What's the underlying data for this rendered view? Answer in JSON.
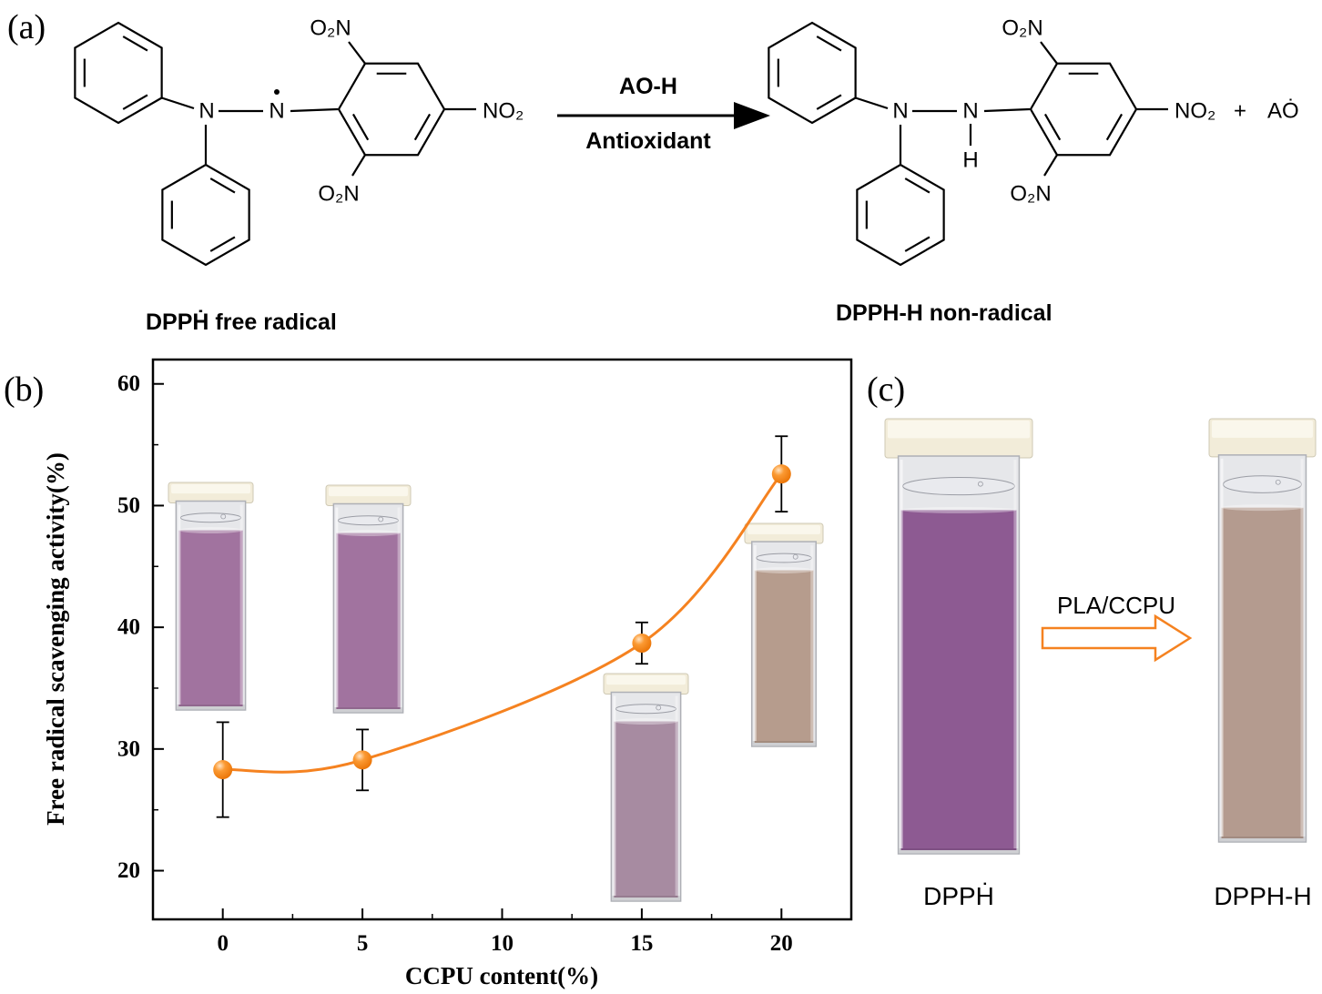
{
  "panel_a": {
    "label": "(a)",
    "reagent_top": "AO-H",
    "reagent_bottom": "Antioxidant",
    "left_caption": "DPPḢ free radical",
    "right_caption": "DPPH-H non-radical",
    "plus": "+",
    "ao_radical": "AȮ",
    "atoms": {
      "nitrogen": "N",
      "hydrogen": "H",
      "o2n": "O₂N",
      "no2": "NO₂"
    }
  },
  "panel_b": {
    "label": "(b)",
    "cap_color": "#f2ecd9",
    "insets": [
      {
        "ccpu_percent": 0,
        "liquid": "#a1739f"
      },
      {
        "ccpu_percent": 5,
        "liquid": "#a1739f"
      },
      {
        "ccpu_percent": 15,
        "liquid": "#a78ba1"
      },
      {
        "ccpu_percent": 20,
        "liquid": "#b69c8d"
      }
    ]
  },
  "panel_c": {
    "label": "(c)",
    "arrow_label": "PLA/CCPU",
    "left_caption": "DPPḢ",
    "right_caption": "DPPH-H",
    "cap_color": "#f2ecd9",
    "left_liquid": "#8d5a92",
    "right_liquid": "#b49b8f"
  },
  "chart_data": {
    "type": "scatter-line",
    "x": [
      0,
      5,
      15,
      20
    ],
    "y": [
      28.3,
      29.1,
      38.7,
      52.6
    ],
    "yerr": [
      3.9,
      2.5,
      1.7,
      3.1
    ],
    "title": "",
    "xlabel": "CCPU content(%)",
    "ylabel": "Free radical scavenging activity(%)",
    "xlim": [
      -2.5,
      22.5
    ],
    "ylim": [
      16,
      62
    ],
    "xticks": [
      0,
      5,
      10,
      15,
      20
    ],
    "yticks": [
      20,
      30,
      40,
      50,
      60
    ],
    "x_minor_step": 2.5,
    "y_minor_step": 5,
    "grid": false,
    "line_color": "#f58220",
    "marker_color": "#f58220",
    "error_color": "#000000"
  }
}
